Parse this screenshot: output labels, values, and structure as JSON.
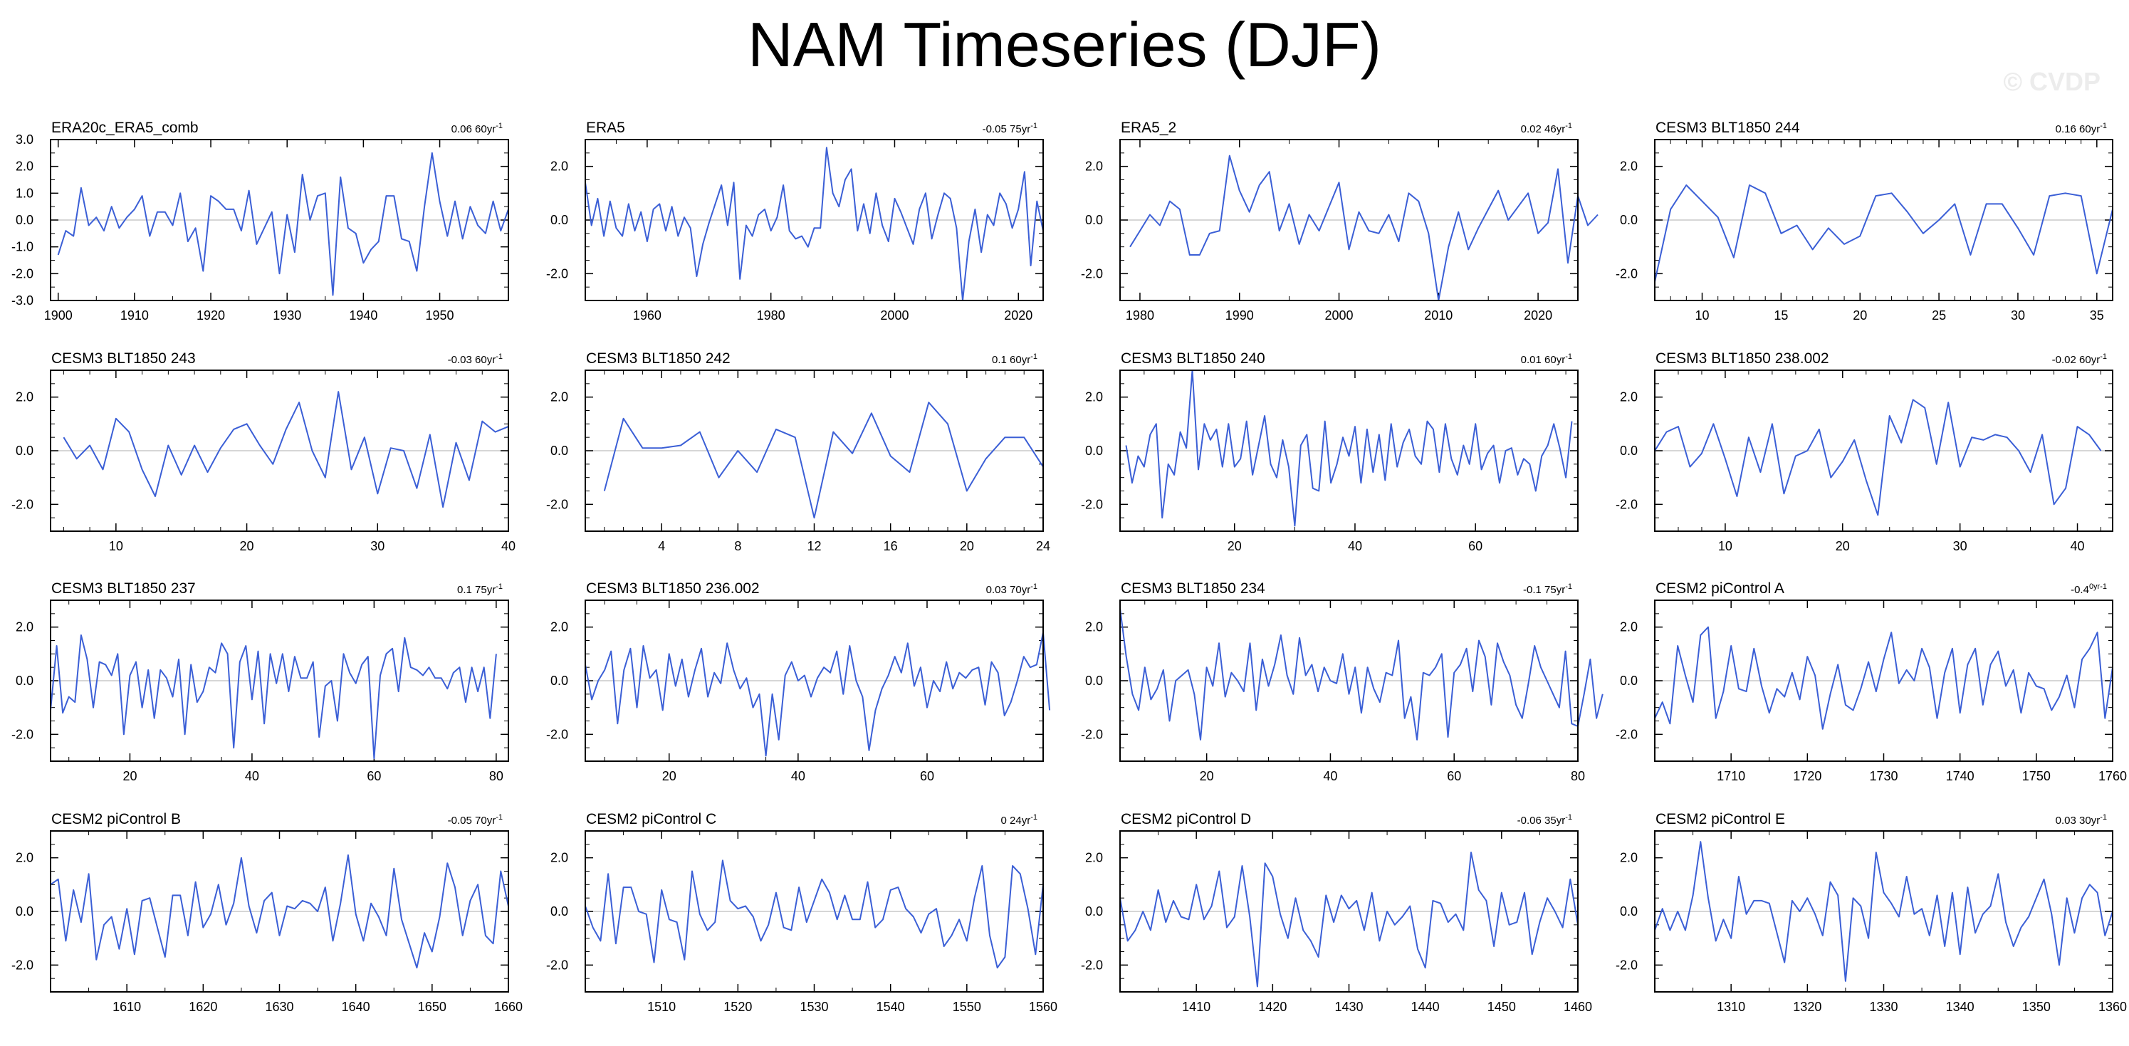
{
  "title": "NAM Timeseries (DJF)",
  "watermark": "© CVDP",
  "colors": {
    "series": "#3b5fd6",
    "zero_line": "#c8c8c8",
    "axis": "#000000"
  },
  "chart_data": [
    {
      "type": "line",
      "title": "ERA20c_ERA5_comb",
      "trend": "0.06 60yr",
      "trend_sup": "-1",
      "xlim": [
        1899,
        1959
      ],
      "xticks": [
        1900,
        1910,
        1920,
        1930,
        1940,
        1950
      ],
      "ylim": [
        -3,
        3
      ],
      "yticks": [
        -3,
        -2,
        -1,
        0,
        1,
        2,
        3
      ],
      "x_start": 1900,
      "x_step": 1,
      "values": [
        -1.3,
        -0.4,
        -0.6,
        1.2,
        -0.2,
        0.1,
        -0.4,
        0.5,
        -0.3,
        0.1,
        0.4,
        0.9,
        -0.6,
        0.3,
        0.3,
        -0.2,
        1.0,
        -0.8,
        -0.3,
        -1.9,
        0.9,
        0.7,
        0.4,
        0.4,
        -0.4,
        1.1,
        -0.9,
        -0.3,
        0.3,
        -2.0,
        0.2,
        -1.2,
        1.7,
        0.0,
        0.9,
        1.0,
        -2.8,
        1.6,
        -0.3,
        -0.5,
        -1.6,
        -1.1,
        -0.8,
        0.9,
        0.9,
        -0.7,
        -0.8,
        -1.9,
        0.5,
        2.5,
        0.7,
        -0.6,
        0.7,
        -0.7,
        0.5,
        -0.2,
        -0.5,
        0.7,
        -0.4,
        0.4
      ]
    },
    {
      "type": "line",
      "title": "ERA5",
      "trend": "-0.05 75yr",
      "trend_sup": "-1",
      "xlim": [
        1950,
        2024
      ],
      "xticks": [
        1960,
        1980,
        2000,
        2020
      ],
      "ylim": [
        -3,
        3
      ],
      "yticks": [
        -2,
        0,
        2
      ],
      "x_start": 1950,
      "x_step": 1,
      "values": [
        1.4,
        -0.2,
        0.8,
        -0.6,
        0.7,
        -0.3,
        -0.6,
        0.6,
        -0.4,
        0.3,
        -0.8,
        0.4,
        0.6,
        -0.4,
        0.5,
        -0.6,
        0.1,
        -0.3,
        -2.1,
        -0.9,
        -0.1,
        0.6,
        1.3,
        -0.2,
        1.4,
        -2.2,
        -0.2,
        -0.6,
        0.2,
        0.4,
        -0.4,
        0.1,
        1.3,
        -0.4,
        -0.7,
        -0.6,
        -1.0,
        -0.3,
        -0.3,
        2.7,
        1.0,
        0.5,
        1.5,
        1.9,
        -0.4,
        0.6,
        -0.5,
        1.0,
        -0.2,
        -0.8,
        0.8,
        0.3,
        -0.3,
        -0.9,
        0.4,
        1.0,
        -0.7,
        0.2,
        1.0,
        0.8,
        -0.3,
        -3.0,
        -0.8,
        0.4,
        -1.2,
        0.2,
        -0.2,
        1.0,
        0.6,
        -0.3,
        0.4,
        1.8,
        -1.7,
        0.7,
        -0.4
      ]
    },
    {
      "type": "line",
      "title": "ERA5_2",
      "trend": "0.02 46yr",
      "trend_sup": "-1",
      "xlim": [
        1978,
        2024
      ],
      "xticks": [
        1980,
        1990,
        2000,
        2010,
        2020
      ],
      "ylim": [
        -3,
        3
      ],
      "yticks": [
        -2,
        0,
        2
      ],
      "x_start": 1979,
      "x_step": 1,
      "values": [
        -1.0,
        -0.4,
        0.2,
        -0.2,
        0.7,
        0.4,
        -1.3,
        -1.3,
        -0.5,
        -0.4,
        2.4,
        1.1,
        0.3,
        1.3,
        1.8,
        -0.4,
        0.6,
        -0.9,
        0.2,
        -0.4,
        0.5,
        1.4,
        -1.1,
        0.3,
        -0.4,
        -0.5,
        0.2,
        -0.8,
        1.0,
        0.7,
        -0.5,
        -3.0,
        -1.0,
        0.3,
        -1.1,
        -0.3,
        0.4,
        1.1,
        0.0,
        0.5,
        1.0,
        -0.5,
        -0.1,
        1.9,
        -1.6,
        0.9,
        -0.2,
        0.2
      ]
    },
    {
      "type": "line",
      "title": "CESM3 BLT1850 244",
      "trend": "0.16 60yr",
      "trend_sup": "-1",
      "xlim": [
        7,
        36
      ],
      "xticks": [
        10,
        15,
        20,
        25,
        30,
        35
      ],
      "ylim": [
        -3,
        3
      ],
      "yticks": [
        -2,
        0,
        2
      ],
      "x_start": 7,
      "x_step": 1,
      "values": [
        -2.3,
        0.4,
        1.3,
        0.7,
        0.1,
        -1.4,
        1.3,
        1.0,
        -0.5,
        -0.2,
        -1.1,
        -0.3,
        -0.9,
        -0.6,
        0.9,
        1.0,
        0.3,
        -0.5,
        0.0,
        0.6,
        -1.3,
        0.6,
        0.6,
        -0.3,
        -1.3,
        0.9,
        1.0,
        0.9,
        -2.0,
        0.4
      ]
    },
    {
      "type": "line",
      "title": "CESM3 BLT1850 243",
      "trend": "-0.03 60yr",
      "trend_sup": "-1",
      "xlim": [
        5,
        40
      ],
      "xticks": [
        10,
        20,
        30,
        40
      ],
      "ylim": [
        -3,
        3
      ],
      "yticks": [
        -2,
        0,
        2
      ],
      "x_start": 6,
      "x_step": 1,
      "values": [
        0.5,
        -0.3,
        0.2,
        -0.7,
        1.2,
        0.7,
        -0.7,
        -1.7,
        0.2,
        -0.9,
        0.2,
        -0.8,
        0.1,
        0.8,
        1.0,
        0.2,
        -0.5,
        0.8,
        1.8,
        0.0,
        -1.0,
        2.2,
        -0.7,
        0.5,
        -1.6,
        0.1,
        0.0,
        -1.4,
        0.6,
        -2.1,
        0.3,
        -1.1,
        1.1,
        0.7,
        0.9
      ]
    },
    {
      "type": "line",
      "title": "CESM3 BLT1850 242",
      "trend": "0.1 60yr",
      "trend_sup": "-1",
      "xlim": [
        0,
        24
      ],
      "xticks": [
        4,
        8,
        12,
        16,
        20,
        24
      ],
      "ylim": [
        -3,
        3
      ],
      "yticks": [
        -2,
        0,
        2
      ],
      "x_start": 1,
      "x_step": 1,
      "values": [
        -1.5,
        1.2,
        0.1,
        0.1,
        0.2,
        0.7,
        -1.0,
        0.0,
        -0.8,
        0.8,
        0.5,
        -2.5,
        0.7,
        -0.1,
        1.4,
        -0.2,
        -0.8,
        1.8,
        1.0,
        -1.5,
        -0.3,
        0.5,
        0.5,
        -0.6
      ]
    },
    {
      "type": "line",
      "title": "CESM3 BLT1850 240",
      "trend": "0.01 60yr",
      "trend_sup": "-1",
      "xlim": [
        1,
        77
      ],
      "xticks": [
        20,
        40,
        60
      ],
      "ylim": [
        -3,
        3
      ],
      "yticks": [
        -2,
        0,
        2
      ],
      "x_start": 2,
      "x_step": 1,
      "values": [
        0.2,
        -1.2,
        -0.2,
        -0.6,
        0.6,
        1.0,
        -2.5,
        -0.5,
        -0.9,
        0.7,
        0.1,
        3.0,
        -0.7,
        1.0,
        0.4,
        0.8,
        -0.6,
        1.0,
        -0.6,
        -0.3,
        1.1,
        -0.9,
        0.2,
        1.3,
        -0.5,
        -1.0,
        0.4,
        -0.6,
        -2.8,
        0.2,
        0.6,
        -1.4,
        -1.5,
        1.1,
        -1.2,
        -0.5,
        0.5,
        -0.2,
        0.9,
        -1.2,
        0.8,
        -0.8,
        0.6,
        -1.1,
        1.0,
        -0.6,
        0.3,
        0.8,
        -0.2,
        -0.5,
        1.1,
        0.8,
        -0.8,
        1.0,
        -0.3,
        -0.9,
        0.2,
        -0.5,
        1.0,
        -0.7,
        -0.1,
        0.2,
        -1.2,
        0.0,
        0.1,
        -0.9,
        -0.3,
        -0.5,
        -1.5,
        -0.2,
        0.2,
        1.0,
        0.1,
        -1.0,
        1.1
      ]
    },
    {
      "type": "line",
      "title": "CESM3 BLT1850 238.002",
      "trend": "-0.02 60yr",
      "trend_sup": "-1",
      "xlim": [
        4,
        43
      ],
      "xticks": [
        10,
        20,
        30,
        40
      ],
      "ylim": [
        -3,
        3
      ],
      "yticks": [
        -2,
        0,
        2
      ],
      "x_start": 4,
      "x_step": 1,
      "values": [
        0.0,
        0.7,
        0.9,
        -0.6,
        -0.1,
        1.0,
        -0.3,
        -1.7,
        0.5,
        -0.8,
        1.0,
        -1.6,
        -0.2,
        0.0,
        0.8,
        -1.0,
        -0.4,
        0.4,
        -1.1,
        -2.4,
        1.3,
        0.3,
        1.9,
        1.6,
        -0.5,
        1.8,
        -0.6,
        0.5,
        0.4,
        0.6,
        0.5,
        0.0,
        -0.8,
        0.6,
        -2.0,
        -1.4,
        0.9,
        0.6,
        0.0
      ]
    },
    {
      "type": "line",
      "title": "CESM3 BLT1850 237",
      "trend": "0.1 75yr",
      "trend_sup": "-1",
      "xlim": [
        7,
        82
      ],
      "xticks": [
        20,
        40,
        60,
        80
      ],
      "ylim": [
        -3,
        3
      ],
      "yticks": [
        -2,
        0,
        2
      ],
      "x_start": 7,
      "x_step": 1,
      "values": [
        -1.1,
        1.3,
        -1.2,
        -0.6,
        -0.8,
        1.7,
        0.8,
        -1.0,
        0.7,
        0.6,
        0.2,
        1.0,
        -2.0,
        0.2,
        0.7,
        -1.0,
        0.4,
        -1.4,
        0.4,
        0.1,
        -0.6,
        0.8,
        -2.0,
        0.6,
        -0.8,
        -0.4,
        0.5,
        0.3,
        1.4,
        1.0,
        -2.5,
        0.7,
        1.3,
        -0.7,
        1.1,
        -1.6,
        1.0,
        -0.1,
        1.0,
        -0.4,
        0.9,
        0.1,
        0.1,
        0.7,
        -2.1,
        -0.2,
        0.0,
        -1.5,
        1.0,
        0.3,
        -0.1,
        0.6,
        0.9,
        -2.9,
        0.2,
        1.0,
        1.2,
        -0.4,
        1.6,
        0.5,
        0.4,
        0.2,
        0.5,
        0.1,
        0.1,
        -0.3,
        0.3,
        0.5,
        -0.8,
        0.5,
        -0.4,
        0.5,
        -1.4,
        1.0
      ]
    },
    {
      "type": "line",
      "title": "CESM3 BLT1850 236.002",
      "trend": "0.03 70yr",
      "trend_sup": "-1",
      "xlim": [
        7,
        78
      ],
      "xticks": [
        20,
        40,
        60
      ],
      "ylim": [
        -3,
        3
      ],
      "yticks": [
        -2,
        0,
        2
      ],
      "x_start": 7,
      "x_step": 1,
      "values": [
        0.6,
        -0.7,
        0.0,
        0.4,
        1.1,
        -1.6,
        0.4,
        1.2,
        -1.0,
        1.3,
        0.1,
        0.4,
        -1.1,
        1.0,
        -0.2,
        0.8,
        -0.6,
        0.4,
        1.2,
        -0.6,
        0.3,
        -0.1,
        1.4,
        0.4,
        -0.3,
        0.1,
        -1.0,
        -0.5,
        -2.8,
        -0.5,
        -2.2,
        0.2,
        0.7,
        0.0,
        0.2,
        -0.6,
        0.1,
        0.5,
        0.3,
        1.1,
        -0.5,
        1.3,
        0.0,
        -0.6,
        -2.6,
        -1.1,
        -0.3,
        0.2,
        0.9,
        0.3,
        1.4,
        -0.2,
        0.5,
        -1.0,
        0.0,
        -0.4,
        0.7,
        -0.3,
        0.3,
        0.1,
        0.4,
        0.5,
        -0.9,
        0.7,
        0.3,
        -1.3,
        -0.8,
        0.0,
        0.9,
        0.5,
        0.6,
        1.8,
        -1.1
      ]
    },
    {
      "type": "line",
      "title": "CESM3 BLT1850 234",
      "trend": "-0.1 75yr",
      "trend_sup": "-1",
      "xlim": [
        6,
        80
      ],
      "xticks": [
        20,
        40,
        60,
        80
      ],
      "ylim": [
        -3,
        3
      ],
      "yticks": [
        -2,
        0,
        2
      ],
      "x_start": 6,
      "x_step": 1,
      "values": [
        2.7,
        0.9,
        -0.5,
        -1.1,
        0.5,
        -0.7,
        -0.3,
        0.4,
        -1.5,
        0.0,
        0.2,
        0.4,
        -0.5,
        -2.2,
        0.5,
        -0.2,
        1.4,
        -0.6,
        0.3,
        0.0,
        -0.4,
        1.4,
        -1.1,
        0.8,
        -0.2,
        0.6,
        1.7,
        0.2,
        -0.5,
        1.6,
        0.2,
        0.6,
        -0.4,
        0.5,
        0.0,
        -0.1,
        1.0,
        -0.5,
        0.5,
        -1.2,
        0.5,
        -0.3,
        -0.8,
        0.3,
        0.2,
        1.5,
        -1.4,
        -0.6,
        -2.2,
        0.3,
        0.2,
        0.5,
        1.0,
        -2.1,
        0.3,
        0.6,
        1.2,
        -0.4,
        1.5,
        0.9,
        -0.9,
        1.4,
        0.7,
        0.2,
        -0.9,
        -1.4,
        -0.1,
        1.3,
        0.5,
        0.0,
        -0.5,
        -1.0,
        1.1,
        -1.6,
        -1.7,
        -0.5,
        0.8,
        -1.4,
        -0.5
      ]
    },
    {
      "type": "line",
      "title": "CESM2 piControl A",
      "trend": "-0.4",
      "trend_sup": "0yr-1",
      "xlim": [
        1700,
        1760
      ],
      "xticks": [
        1710,
        1720,
        1730,
        1740,
        1750,
        1760
      ],
      "ylim": [
        -3,
        3
      ],
      "yticks": [
        -2,
        0,
        2
      ],
      "x_start": 1700,
      "x_step": 1,
      "values": [
        -1.4,
        -0.8,
        -1.6,
        1.3,
        0.2,
        -0.8,
        1.7,
        2.0,
        -1.4,
        -0.4,
        1.3,
        -0.3,
        -0.4,
        1.2,
        -0.2,
        -1.2,
        -0.3,
        -0.6,
        0.3,
        -0.7,
        0.9,
        0.2,
        -1.8,
        -0.5,
        0.6,
        -0.9,
        -1.1,
        -0.3,
        0.7,
        -0.4,
        0.8,
        1.8,
        -0.1,
        0.4,
        0.0,
        1.2,
        0.5,
        -1.4,
        0.3,
        1.2,
        -1.2,
        0.6,
        1.2,
        -0.9,
        0.6,
        1.1,
        -0.2,
        0.4,
        -1.2,
        0.3,
        -0.2,
        -0.3,
        -1.1,
        -0.6,
        0.2,
        -1.0,
        0.8,
        1.2,
        1.8,
        -1.4,
        0.5
      ]
    },
    {
      "type": "line",
      "title": "CESM2 piControl B",
      "trend": "-0.05 70yr",
      "trend_sup": "-1",
      "xlim": [
        1600,
        1660
      ],
      "xticks": [
        1610,
        1620,
        1630,
        1640,
        1650,
        1660
      ],
      "ylim": [
        -3,
        3
      ],
      "yticks": [
        -2,
        0,
        2
      ],
      "x_start": 1600,
      "x_step": 1,
      "values": [
        1.0,
        1.2,
        -1.1,
        0.8,
        -0.4,
        1.4,
        -1.8,
        -0.5,
        -0.2,
        -1.4,
        0.1,
        -1.6,
        0.4,
        0.5,
        -0.6,
        -1.7,
        0.6,
        0.6,
        -0.9,
        1.1,
        -0.6,
        -0.1,
        1.0,
        -0.5,
        0.3,
        2.0,
        0.2,
        -0.8,
        0.4,
        0.7,
        -0.9,
        0.2,
        0.1,
        0.4,
        0.3,
        0.0,
        0.9,
        -1.1,
        0.3,
        2.1,
        -0.1,
        -1.1,
        0.3,
        -0.2,
        -0.9,
        1.6,
        -0.3,
        -1.2,
        -2.1,
        -0.8,
        -1.5,
        -0.2,
        1.8,
        0.9,
        -0.9,
        0.4,
        1.0,
        -0.9,
        -1.2,
        1.5,
        0.2
      ]
    },
    {
      "type": "line",
      "title": "CESM2 piControl C",
      "trend": "0 24yr",
      "trend_sup": "-1",
      "xlim": [
        1500,
        1560
      ],
      "xticks": [
        1510,
        1520,
        1530,
        1540,
        1550,
        1560
      ],
      "ylim": [
        -3,
        3
      ],
      "yticks": [
        -2,
        0,
        2
      ],
      "x_start": 1500,
      "x_step": 1,
      "values": [
        0.2,
        -0.6,
        -1.1,
        1.4,
        -1.2,
        0.9,
        0.9,
        0.0,
        -0.1,
        -1.9,
        0.8,
        -0.3,
        -0.4,
        -1.8,
        1.5,
        -0.1,
        -0.7,
        -0.4,
        1.9,
        0.4,
        0.1,
        0.2,
        -0.2,
        -1.1,
        -0.5,
        0.7,
        -0.6,
        -0.7,
        0.9,
        -0.4,
        0.4,
        1.2,
        0.7,
        -0.3,
        0.6,
        -0.3,
        -0.3,
        1.1,
        -0.6,
        -0.3,
        0.8,
        0.9,
        0.1,
        -0.2,
        -0.8,
        -0.1,
        0.1,
        -1.3,
        -0.9,
        -0.3,
        -1.1,
        0.5,
        1.7,
        -0.9,
        -2.1,
        -1.7,
        1.7,
        1.4,
        0.1,
        -1.6,
        1.0
      ]
    },
    {
      "type": "line",
      "title": "CESM2 piControl D",
      "trend": "-0.06 35yr",
      "trend_sup": "-1",
      "xlim": [
        1400,
        1460
      ],
      "xticks": [
        1410,
        1420,
        1430,
        1440,
        1450,
        1460
      ],
      "ylim": [
        -3,
        3
      ],
      "yticks": [
        -2,
        0,
        2
      ],
      "x_start": 1400,
      "x_step": 1,
      "values": [
        0.5,
        -1.1,
        -0.7,
        0.0,
        -0.7,
        0.8,
        -0.4,
        0.4,
        -0.2,
        -0.3,
        1.0,
        -0.3,
        0.2,
        1.5,
        -0.6,
        -0.2,
        1.7,
        -0.2,
        -2.8,
        1.8,
        1.3,
        -0.1,
        -1.0,
        0.5,
        -0.7,
        -1.1,
        -1.7,
        0.6,
        -0.4,
        0.6,
        0.1,
        0.4,
        -0.7,
        0.7,
        -1.1,
        0.0,
        -0.5,
        -0.2,
        0.2,
        -1.4,
        -2.1,
        0.4,
        0.3,
        -0.4,
        -0.1,
        -0.7,
        2.2,
        0.8,
        0.4,
        -1.3,
        0.7,
        -0.5,
        -0.4,
        0.7,
        -1.6,
        -0.4,
        0.5,
        0.0,
        -0.6,
        1.2,
        -0.5
      ]
    },
    {
      "type": "line",
      "title": "CESM2 piControl E",
      "trend": "0.03 30yr",
      "trend_sup": "-1",
      "xlim": [
        1300,
        1360
      ],
      "xticks": [
        1310,
        1320,
        1330,
        1340,
        1350,
        1360
      ],
      "ylim": [
        -3,
        3
      ],
      "yticks": [
        -2,
        0,
        2
      ],
      "x_start": 1300,
      "x_step": 1,
      "values": [
        -0.7,
        0.1,
        -0.7,
        0.0,
        -0.7,
        0.6,
        2.6,
        0.5,
        -1.1,
        -0.3,
        -1.0,
        1.3,
        -0.1,
        0.4,
        0.4,
        0.3,
        -0.8,
        -1.9,
        0.4,
        0.0,
        0.5,
        -0.1,
        -0.9,
        1.1,
        0.6,
        -2.6,
        0.5,
        0.2,
        -1.0,
        2.2,
        0.7,
        0.3,
        -0.2,
        1.3,
        -0.1,
        0.1,
        -0.9,
        0.6,
        -1.3,
        0.7,
        -1.6,
        0.9,
        -0.8,
        -0.1,
        0.2,
        1.4,
        -0.4,
        -1.3,
        -0.6,
        -0.2,
        0.5,
        1.2,
        -0.1,
        -2.0,
        0.5,
        -0.8,
        0.5,
        1.0,
        0.7,
        -0.9,
        0.0
      ]
    }
  ]
}
